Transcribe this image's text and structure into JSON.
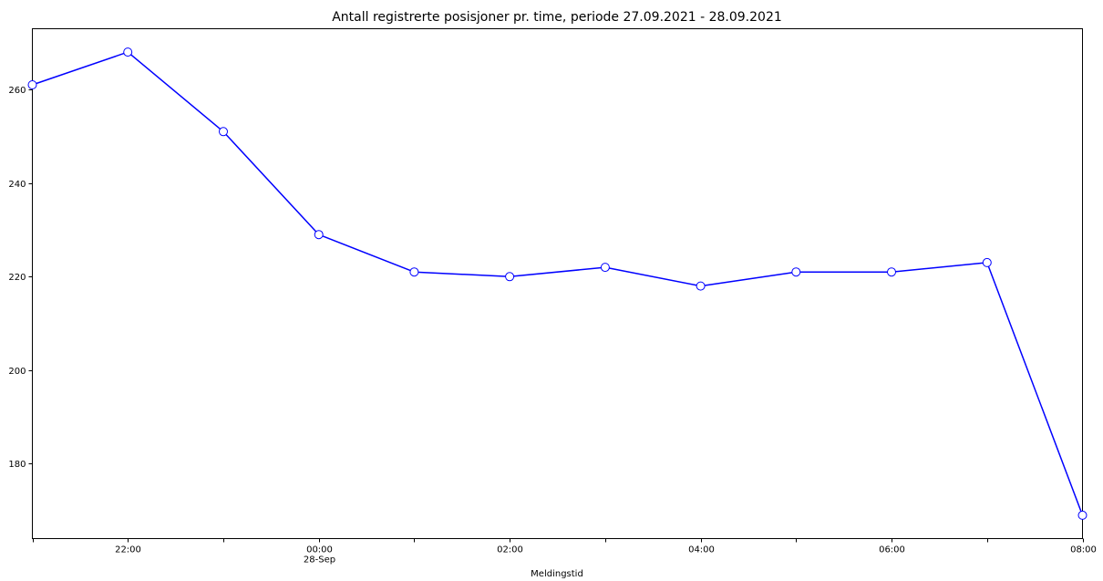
{
  "chart_data": {
    "type": "line",
    "title": "Antall registrerte posisjoner pr. time, periode 27.09.2021 - 28.09.2021",
    "xlabel": "Meldingstid",
    "ylabel": "",
    "x": [
      "2021-09-27 21:00",
      "2021-09-27 22:00",
      "2021-09-27 23:00",
      "2021-09-28 00:00",
      "2021-09-28 01:00",
      "2021-09-28 02:00",
      "2021-09-28 03:00",
      "2021-09-28 04:00",
      "2021-09-28 05:00",
      "2021-09-28 06:00",
      "2021-09-28 07:00",
      "2021-09-28 08:00"
    ],
    "series": [
      {
        "values": [
          261,
          268,
          251,
          229,
          221,
          220,
          222,
          218,
          221,
          221,
          223,
          169
        ],
        "color": "#0000ff"
      }
    ],
    "ylim": [
      164,
      273
    ],
    "x_ticks": [
      {
        "at": "2021-09-27 21:00",
        "label": ""
      },
      {
        "at": "2021-09-27 22:00",
        "label": "22:00"
      },
      {
        "at": "2021-09-27 23:00",
        "label": ""
      },
      {
        "at": "2021-09-28 00:00",
        "label": "00:00",
        "sublabel": "28-Sep"
      },
      {
        "at": "2021-09-28 01:00",
        "label": ""
      },
      {
        "at": "2021-09-28 02:00",
        "label": "02:00"
      },
      {
        "at": "2021-09-28 03:00",
        "label": ""
      },
      {
        "at": "2021-09-28 04:00",
        "label": "04:00"
      },
      {
        "at": "2021-09-28 05:00",
        "label": ""
      },
      {
        "at": "2021-09-28 06:00",
        "label": "06:00"
      },
      {
        "at": "2021-09-28 07:00",
        "label": ""
      },
      {
        "at": "2021-09-28 08:00",
        "label": "08:00"
      }
    ],
    "y_ticks": [
      180,
      200,
      220,
      240,
      260
    ],
    "grid": false,
    "marker": "circle-open",
    "line_color": "#0000ff"
  }
}
